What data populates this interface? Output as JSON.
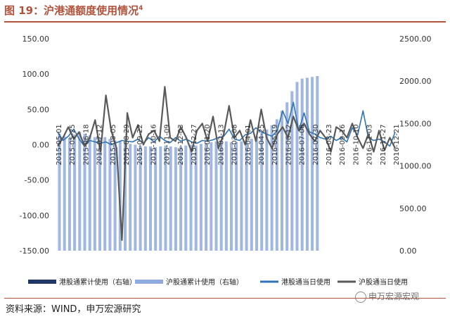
{
  "header": {
    "title": "图 19：沪港通额度使用情况",
    "title_footnote": "4"
  },
  "footer": {
    "source": "资料来源：WIND，申万宏源研究",
    "watermark": "申万宏源宏观"
  },
  "chart_data": {
    "type": "bar",
    "title": "沪港通额度使用情况",
    "y_left_ticks": [
      "150.00",
      "100.00",
      "50.00",
      "0.00",
      "-50.00",
      "-100.00",
      "-150.00"
    ],
    "y_left_range": [
      -150,
      150
    ],
    "y_right_ticks": [
      "2500.00",
      "2000.00",
      "1500.00",
      "1000.00",
      "500.00",
      "0.00"
    ],
    "y_right_range": [
      0,
      2500
    ],
    "x_tick_labels": [
      "2015-05-01",
      "2015-05-25",
      "2015-06-18",
      "2015-07-12",
      "2015-08-05",
      "2015-08-29",
      "2015-09-22",
      "2015-10-16",
      "2015-11-09",
      "2015-12-03",
      "2015-12-27",
      "2016-01-20",
      "2016-02-13",
      "2016-03-08",
      "2016-04-01",
      "2016-04-25",
      "2016-05-19",
      "2016-06-12",
      "2016-07-06",
      "2016-07-30",
      "2016-08-23",
      "2016-09-16",
      "2016-10-10",
      "2016-11-03",
      "2016-11-27",
      "2016-12-21"
    ],
    "legend": [
      "港股通累计使用（右轴）",
      "沪股通累计使用（右轴）",
      "港股通当日使用",
      "沪股通当日使用"
    ],
    "legend_position": "bottom",
    "grid": false,
    "colors": {
      "hk_cum": "#1f3864",
      "sh_cum": "#8faadc",
      "hk_daily": "#2e75b6",
      "sh_daily": "#595959"
    },
    "series": [
      {
        "name": "沪股通累计使用（右轴）",
        "axis": "right",
        "values": [
          1380,
          1350,
          1330,
          1370,
          1400,
          1380,
          1360,
          1340,
          1330,
          1340,
          1320,
          1300,
          1290,
          1280,
          1260,
          1250,
          1240,
          1230,
          1230,
          1220,
          1230,
          1240,
          1230,
          1220,
          1230,
          1240,
          1250,
          1240,
          1260,
          1270,
          1280,
          1290,
          1300,
          1290,
          1280,
          1280,
          1290,
          1300,
          1320,
          1350,
          1390,
          1430,
          1480,
          1550,
          1650,
          1750,
          1880,
          1990,
          2030,
          2040,
          2050,
          2060
        ]
      },
      {
        "name": "港股通当日使用",
        "axis": "left",
        "values": [
          18,
          6,
          12,
          22,
          8,
          -2,
          6,
          4,
          2,
          4,
          0,
          3,
          6,
          5,
          4,
          8,
          2,
          10,
          4,
          12,
          6,
          3,
          10,
          5,
          8,
          4,
          2,
          6,
          5,
          7,
          10,
          12,
          22,
          8,
          6,
          14,
          16,
          24,
          18,
          15,
          12,
          20,
          48,
          30,
          60,
          20,
          45,
          18,
          15,
          10,
          8,
          12,
          6,
          10,
          4,
          24,
          14,
          48,
          10,
          6,
          8,
          4,
          -2,
          18
        ]
      },
      {
        "name": "沪股通当日使用",
        "axis": "left",
        "values": [
          -2,
          10,
          25,
          8,
          18,
          -2,
          10,
          35,
          -10,
          70,
          20,
          -5,
          -135,
          45,
          10,
          28,
          0,
          15,
          20,
          5,
          82,
          10,
          5,
          25,
          10,
          -10,
          20,
          30,
          5,
          40,
          -5,
          15,
          55,
          10,
          20,
          0,
          35,
          5,
          50,
          10,
          -5,
          15,
          25,
          10,
          40,
          20,
          30,
          15,
          5,
          20,
          10,
          -10,
          25,
          20,
          10,
          30,
          10,
          -5,
          15,
          -10,
          20,
          -8,
          10,
          -5
        ]
      }
    ]
  }
}
